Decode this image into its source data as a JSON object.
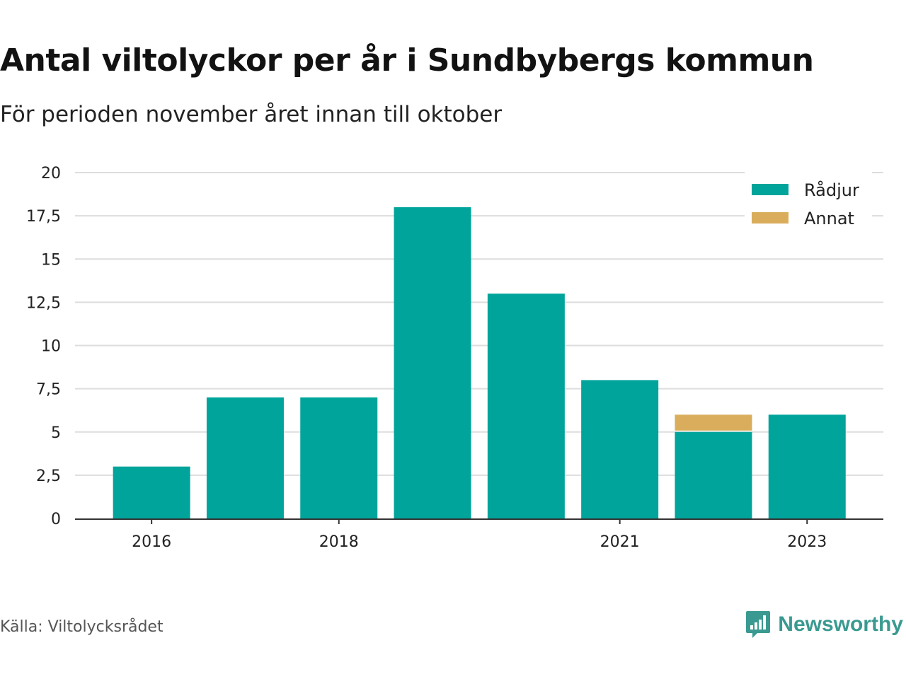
{
  "header": {
    "title": "Antal viltolyckor per år i Sundbybergs kommun",
    "subtitle": "För perioden november året innan till oktober"
  },
  "footer": {
    "source": "Källa: Viltolycksrådet",
    "brand": "Newsworthy"
  },
  "colors": {
    "radjur": "#00a49a",
    "annat": "#d9ad5b",
    "grid": "#dddddd",
    "axis": "#333333",
    "brand": "#3a9a91"
  },
  "icons": {
    "brand_logo": "bar-chart-speech-bubble-icon"
  },
  "chart_data": {
    "type": "bar",
    "stacked": true,
    "title": "Antal viltolyckor per år i Sundbybergs kommun",
    "subtitle": "För perioden november året innan till oktober",
    "xlabel": "",
    "ylabel": "",
    "categories": [
      2016,
      2017,
      2018,
      2019,
      2020,
      2021,
      2022,
      2023
    ],
    "x_tick_labels": [
      "2016",
      "2018",
      "2021",
      "2023"
    ],
    "y_ticks": [
      0,
      2.5,
      5,
      7.5,
      10,
      12.5,
      15,
      17.5,
      20
    ],
    "y_tick_labels": [
      "0",
      "2,5",
      "5",
      "7,5",
      "10",
      "12,5",
      "15",
      "17,5",
      "20"
    ],
    "ylim": [
      0,
      20
    ],
    "grid": true,
    "legend_position": "top-right",
    "series": [
      {
        "name": "Rådjur",
        "color": "#00a49a",
        "values": [
          3,
          7,
          7,
          18,
          13,
          8,
          5,
          6
        ]
      },
      {
        "name": "Annat",
        "color": "#d9ad5b",
        "values": [
          0,
          0,
          0,
          0,
          0,
          0,
          1,
          0
        ]
      }
    ]
  }
}
